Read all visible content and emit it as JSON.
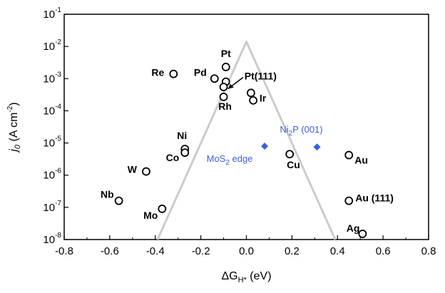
{
  "chart_data": {
    "type": "scatter",
    "title": "",
    "xlabel": {
      "base": "ΔG",
      "sub": "H*",
      "unit": " (eV)"
    },
    "ylabel": {
      "main": "j",
      "sub": "0",
      "unit_pre": " (A cm",
      "unit_sup": "-2",
      "unit_post": ")"
    },
    "xlim": [
      -0.8,
      0.8
    ],
    "y_scale": "log",
    "ylim": [
      1e-08,
      0.1
    ],
    "x_ticks": [
      "-0.8",
      "-0.6",
      "-0.4",
      "-0.2",
      "0.0",
      "0.2",
      "0.4",
      "0.6",
      "0.8"
    ],
    "y_ticks": [
      {
        "base": "10",
        "exp": "-8"
      },
      {
        "base": "10",
        "exp": "-7"
      },
      {
        "base": "10",
        "exp": "-6"
      },
      {
        "base": "10",
        "exp": "-5"
      },
      {
        "base": "10",
        "exp": "-4"
      },
      {
        "base": "10",
        "exp": "-3"
      },
      {
        "base": "10",
        "exp": "-2"
      },
      {
        "base": "10",
        "exp": "-1"
      }
    ],
    "volcano": {
      "color": "#c8cec8",
      "points": [
        [
          -0.39,
          1e-08
        ],
        [
          0.0,
          0.014
        ],
        [
          0.39,
          1e-08
        ]
      ]
    },
    "metals": [
      {
        "label": "Re",
        "x": -0.32,
        "y": 0.0014
      },
      {
        "label": "Pt",
        "x": -0.09,
        "y": 0.0023
      },
      {
        "label": "Pd",
        "x": -0.14,
        "y": 0.001
      },
      {
        "label": "Pt(111)",
        "x": -0.09,
        "y": 0.0008
      },
      {
        "label": "",
        "x": -0.1,
        "y": 0.00055
      },
      {
        "label": "Rh",
        "x": -0.1,
        "y": 0.00027
      },
      {
        "label": "Ir",
        "x": 0.02,
        "y": 0.00036
      },
      {
        "label": "",
        "x": 0.03,
        "y": 0.00021
      },
      {
        "label": "Ni",
        "x": -0.27,
        "y": 6.5e-06
      },
      {
        "label": "Co",
        "x": -0.27,
        "y": 5e-06
      },
      {
        "label": "W",
        "x": -0.44,
        "y": 1.3e-06
      },
      {
        "label": "Cu",
        "x": 0.19,
        "y": 4.5e-06
      },
      {
        "label": "Au",
        "x": 0.45,
        "y": 4.2e-06
      },
      {
        "label": "Nb",
        "x": -0.56,
        "y": 1.6e-07
      },
      {
        "label": "Mo",
        "x": -0.37,
        "y": 9e-08
      },
      {
        "label": "Au (111)",
        "x": 0.45,
        "y": 1.6e-07
      },
      {
        "label": "Ag",
        "x": 0.51,
        "y": 1.5e-08
      }
    ],
    "references": [
      {
        "label": "MoS",
        "sub": "2",
        "suffix": " edge",
        "x": 0.08,
        "y": 8e-06
      },
      {
        "label": "Ni",
        "sub": "2",
        "suffix": "P (001)",
        "x": 0.31,
        "y": 7.5e-06
      }
    ],
    "reference_color": "#3a5fe0"
  }
}
